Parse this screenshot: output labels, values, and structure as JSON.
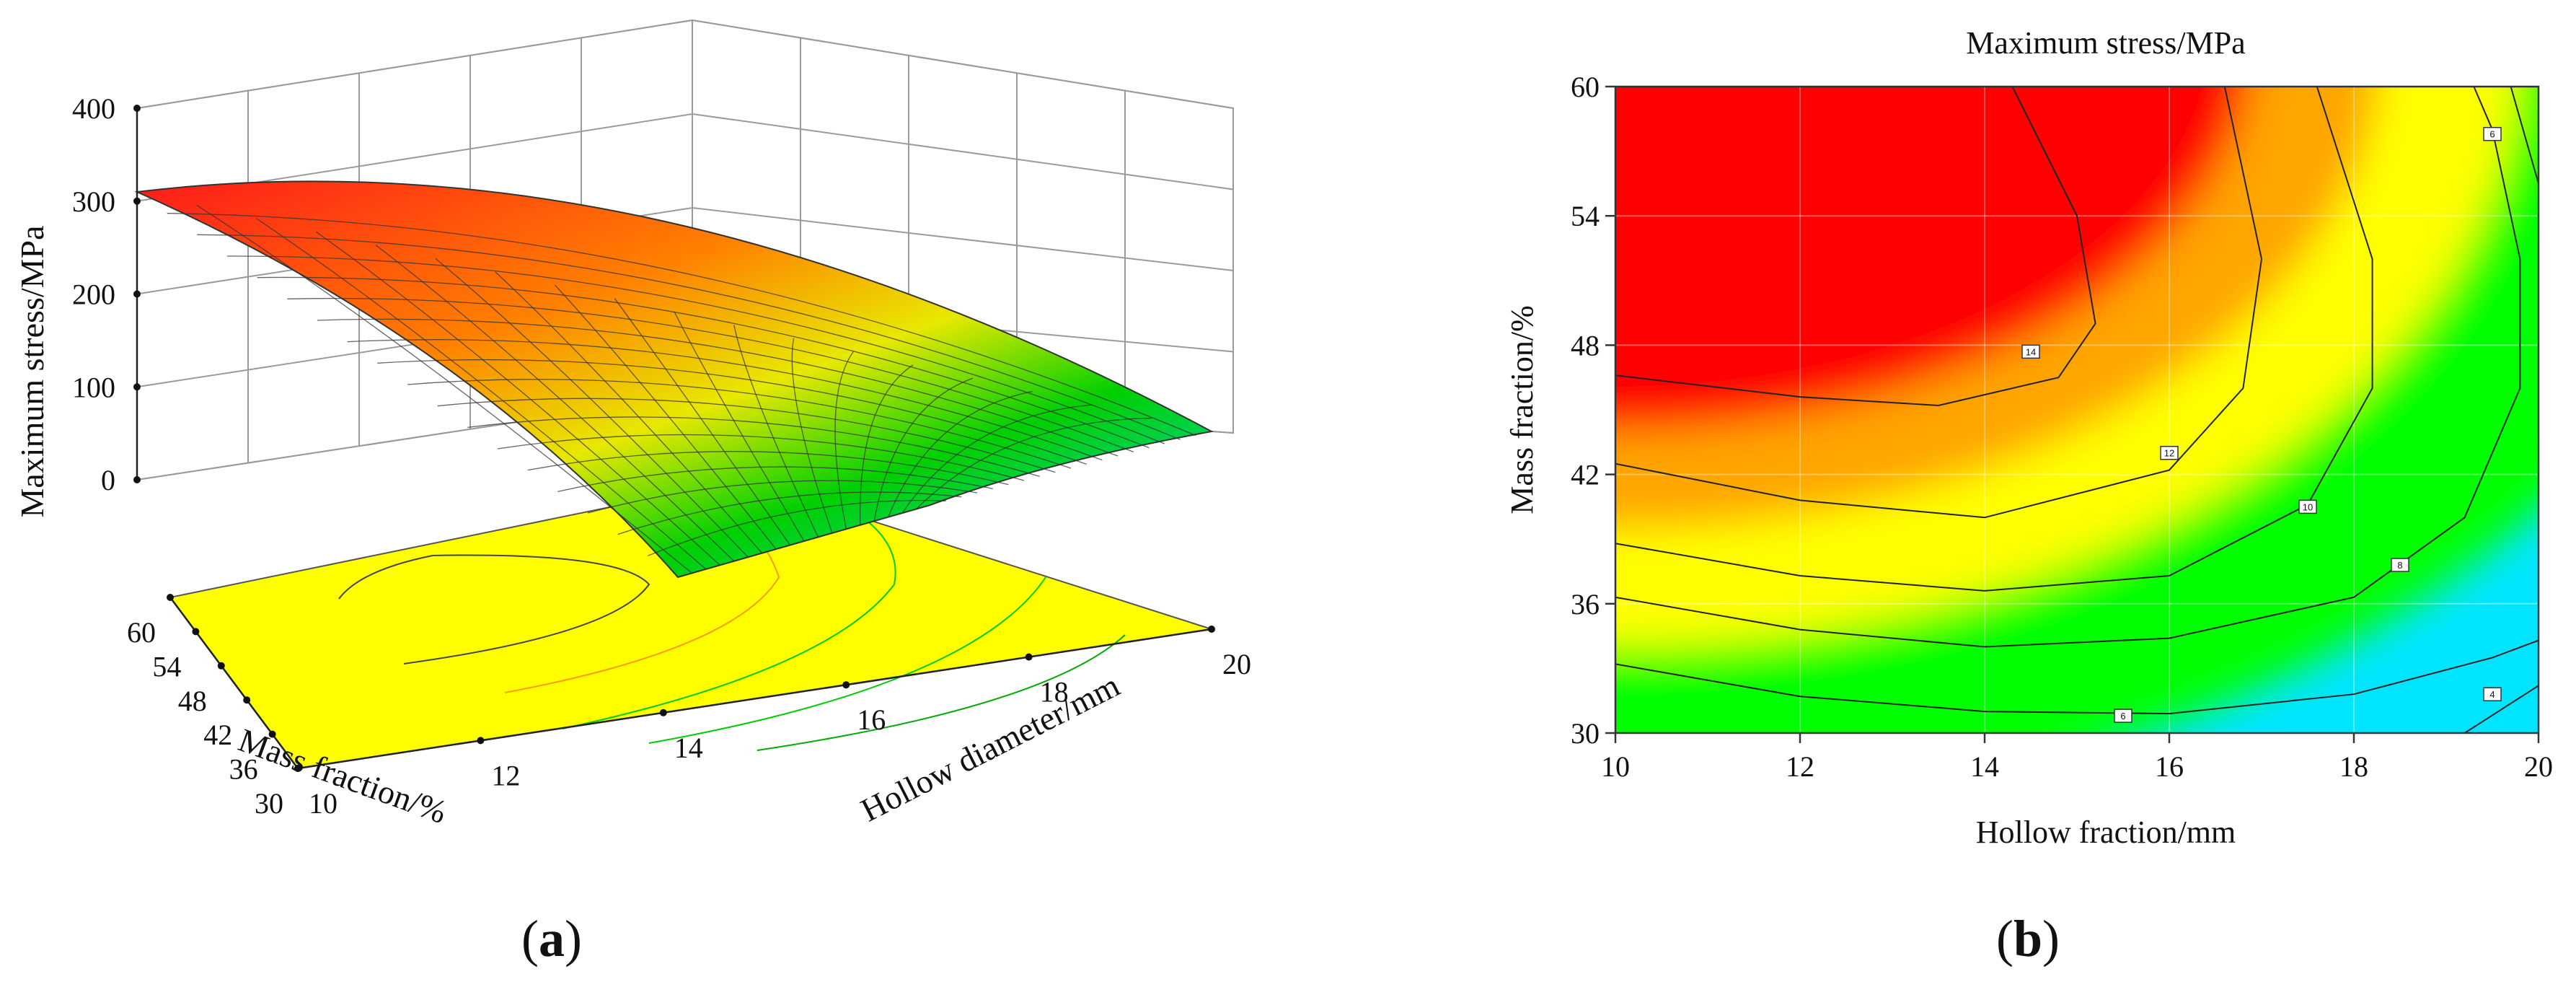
{
  "chart_data": [
    {
      "panel": "a",
      "panel_label": "a",
      "type": "surface",
      "zlabel": "Maximum stress/MPa",
      "xlabel": "Hollow diameter/mm",
      "ylabel": "Mass fraction/%",
      "zticks": [
        "0",
        "100",
        "200",
        "300",
        "400"
      ],
      "xticks": [
        "10",
        "12",
        "14",
        "16",
        "18",
        "20"
      ],
      "yticks": [
        "30",
        "36",
        "42",
        "48",
        "54",
        "60"
      ],
      "zlim": [
        0,
        400
      ],
      "xlim": [
        10,
        20
      ],
      "ylim": [
        30,
        60
      ],
      "surface_corners": [
        {
          "hollow_diameter": 10,
          "mass_fraction": 60,
          "stress": 305
        },
        {
          "hollow_diameter": 20,
          "mass_fraction": 60,
          "stress": 235
        },
        {
          "hollow_diameter": 10,
          "mass_fraction": 30,
          "stress": 45
        },
        {
          "hollow_diameter": 20,
          "mass_fraction": 30,
          "stress": 40
        }
      ],
      "base_contour_color": "#ffff00",
      "grid": true
    },
    {
      "panel": "b",
      "panel_label": "b",
      "type": "contour",
      "title": "Maximum stress/MPa",
      "xlabel": "Hollow fraction/mm",
      "ylabel": "Mass fraction/%",
      "xticks": [
        "10",
        "12",
        "14",
        "16",
        "18",
        "20"
      ],
      "yticks": [
        "30",
        "36",
        "42",
        "48",
        "54",
        "60"
      ],
      "xlim": [
        10,
        20
      ],
      "ylim": [
        30,
        60
      ],
      "contour_labels": [
        {
          "text": "14",
          "x": 14.5,
          "y": 47.7
        },
        {
          "text": "12",
          "x": 16.0,
          "y": 43.0
        },
        {
          "text": "10",
          "x": 17.5,
          "y": 40.5
        },
        {
          "text": "8",
          "x": 18.5,
          "y": 37.8
        },
        {
          "text": "6",
          "x": 15.5,
          "y": 30.8
        },
        {
          "text": "6",
          "x": 19.5,
          "y": 57.8
        },
        {
          "text": "4",
          "x": 19.5,
          "y": 31.8
        }
      ],
      "colors": {
        "high": "#ff0000",
        "mid_high": "#ffa500",
        "mid": "#ffff00",
        "low": "#00ff00",
        "lowest": "#00e5ff"
      },
      "grid": true
    }
  ]
}
